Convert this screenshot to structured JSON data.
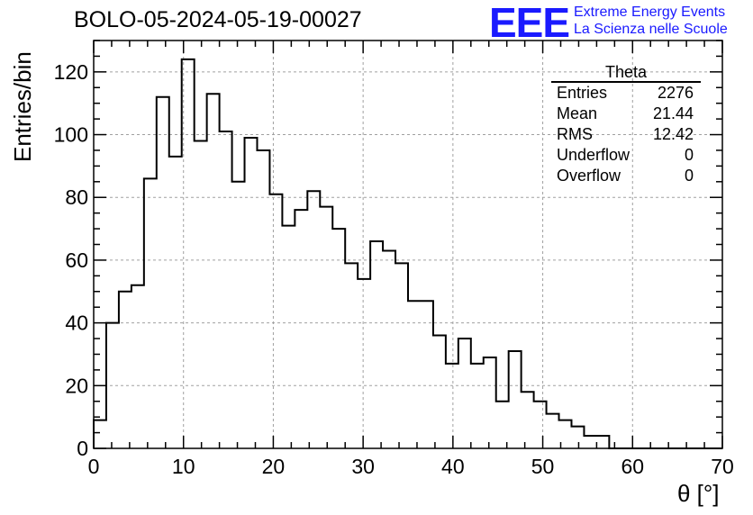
{
  "header": {
    "title": "BOLO-05-2024-05-19-00027",
    "logo_mark": "EEE",
    "logo_line1": "Extreme Energy Events",
    "logo_line2": "La Scienza nelle Scuole"
  },
  "stats_box": {
    "title": "Theta",
    "rows": [
      {
        "label": "Entries",
        "value": "2276"
      },
      {
        "label": "Mean",
        "value": "21.44"
      },
      {
        "label": "RMS",
        "value": "12.42"
      },
      {
        "label": "Underflow",
        "value": "0"
      },
      {
        "label": "Overflow",
        "value": "0"
      }
    ]
  },
  "colors": {
    "logo": "#1a1aff",
    "line": "#000000",
    "grid": "#a0a0a0"
  },
  "chart_data": {
    "type": "bar",
    "histogram": true,
    "xlabel": "θ [°]",
    "ylabel": "Entries/bin",
    "xlim": [
      0,
      70
    ],
    "ylim": [
      0,
      130
    ],
    "grid": true,
    "bin_width": 1.4,
    "x_ticks": [
      0,
      10,
      20,
      30,
      40,
      50,
      60,
      70
    ],
    "y_ticks": [
      0,
      20,
      40,
      60,
      80,
      100,
      120
    ],
    "values": [
      9,
      40,
      50,
      52,
      86,
      112,
      93,
      124,
      98,
      113,
      101,
      85,
      99,
      95,
      81,
      71,
      76,
      82,
      77,
      70,
      59,
      54,
      66,
      63,
      59,
      47,
      47,
      36,
      27,
      35,
      27,
      29,
      15,
      31,
      18,
      15,
      11,
      9,
      7,
      4,
      4,
      0,
      0,
      0,
      0,
      0,
      0,
      0,
      0,
      0
    ]
  }
}
